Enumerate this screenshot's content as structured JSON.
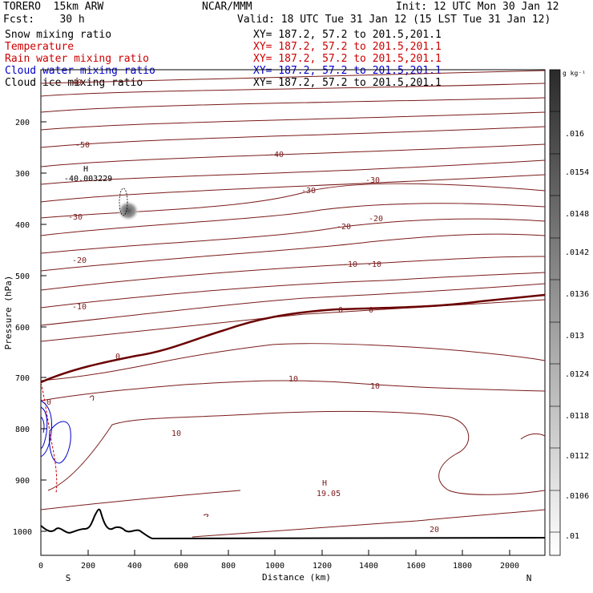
{
  "header": {
    "title": "TORERO  15km ARW",
    "forecast": "Fcst:    30 h",
    "center": "NCAR/MMM",
    "init": "Init: 12 UTC Mon 30 Jan 12",
    "valid": "Valid: 18 UTC Tue 31 Jan 12 (15 LST Tue 31 Jan 12)"
  },
  "fields": [
    {
      "name": "Snow mixing ratio",
      "xy": "XY= 187.2, 57.2 to 201.5,201.1",
      "color": "#000000"
    },
    {
      "name": "Temperature",
      "xy": "XY= 187.2, 57.2 to 201.5,201.1",
      "color": "#cc0000"
    },
    {
      "name": "Rain water mixing ratio",
      "xy": "XY= 187.2, 57.2 to 201.5,201.1",
      "color": "#cc0000"
    },
    {
      "name": "Cloud water mixing ratio",
      "xy": "XY= 187.2, 57.2 to 201.5,201.1",
      "color": "#0000cc"
    },
    {
      "name": "Cloud ice mixing ratio",
      "xy": "XY= 187.2, 57.2 to 201.5,201.1",
      "color": "#000000"
    }
  ],
  "axes": {
    "y_label": "Pressure (hPa)",
    "y_ticks": [
      "200",
      "300",
      "400",
      "500",
      "600",
      "700",
      "800",
      "900",
      "1000"
    ],
    "x_label": "Distance (km)",
    "x_ticks": [
      "0",
      "200",
      "400",
      "600",
      "800",
      "1000",
      "1200",
      "1400",
      "1600",
      "1800",
      "2000"
    ],
    "x_left": "S",
    "x_right": "N"
  },
  "colorbar": {
    "unit": "g kg⁻¹",
    "labels": [
      ".016",
      ".0154",
      ".0148",
      ".0142",
      ".0136",
      ".013",
      ".0124",
      ".0118",
      ".0112",
      ".0106",
      ".01"
    ]
  },
  "contour_labels": [
    "-50",
    "-40",
    "-40",
    "-30",
    "-30",
    "-30",
    "-20",
    "-20",
    "-20",
    "-10",
    "-10",
    "-10",
    "0",
    "0",
    "0",
    "0",
    "10",
    "10",
    "10",
    "20"
  ],
  "annotations": {
    "high1_mark": "H",
    "high1_value": "-40.003229",
    "high2_mark": "H",
    "high2_value": "19.05"
  },
  "colors": {
    "isotherm": "#7a1a1a",
    "freezing_line": "#6a0000",
    "terrain": "#000000",
    "cloud_water": "#0000cc",
    "rain": "#cc0000"
  }
}
